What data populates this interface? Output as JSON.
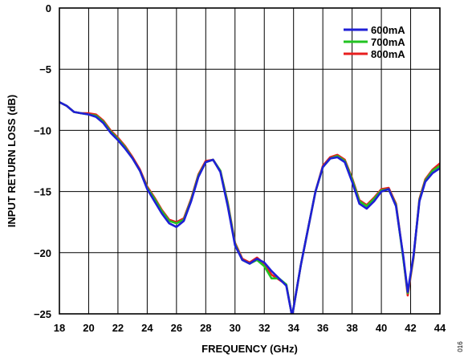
{
  "chart_data": {
    "type": "line",
    "title": "",
    "xlabel": "FREQUENCY (GHz)",
    "ylabel": "INPUT RETURN LOSS (dB)",
    "xlim": [
      18,
      44
    ],
    "ylim": [
      -25,
      0
    ],
    "xticks": [
      "18",
      "20",
      "22",
      "24",
      "26",
      "28",
      "30",
      "32",
      "34",
      "36",
      "38",
      "40",
      "42",
      "44"
    ],
    "yticks": [
      "0",
      "−5",
      "−10",
      "−15",
      "−20",
      "−25"
    ],
    "grid": true,
    "legend_position": "top-right",
    "figure_id": "016",
    "series": [
      {
        "name": "600mA",
        "color": "#1f1fd6",
        "x": [
          18,
          18.5,
          19,
          19.5,
          20,
          20.5,
          21,
          21.5,
          22,
          22.5,
          23,
          23.5,
          24,
          24.5,
          25,
          25.5,
          26,
          26.5,
          27,
          27.5,
          28,
          28.5,
          29,
          29.5,
          30,
          30.5,
          31,
          31.5,
          32,
          32.5,
          33,
          33.5,
          33.9,
          34.5,
          35,
          35.5,
          36,
          36.5,
          37,
          37.5,
          38,
          38.5,
          39,
          39.5,
          40,
          40.5,
          41,
          41.5,
          41.8,
          42.2,
          42.6,
          43,
          43.5,
          44
        ],
        "y": [
          -7.7,
          -8.0,
          -8.5,
          -8.6,
          -8.7,
          -8.9,
          -9.4,
          -10.2,
          -10.8,
          -11.5,
          -12.3,
          -13.3,
          -14.8,
          -15.8,
          -16.8,
          -17.6,
          -17.9,
          -17.4,
          -15.8,
          -13.8,
          -12.6,
          -12.4,
          -13.4,
          -16.2,
          -19.4,
          -20.6,
          -20.9,
          -20.5,
          -20.8,
          -21.5,
          -22.1,
          -22.7,
          -25.2,
          -21.0,
          -18.0,
          -15.0,
          -13.0,
          -12.3,
          -12.2,
          -12.6,
          -14.2,
          -16.0,
          -16.4,
          -15.8,
          -15.0,
          -14.8,
          -16.2,
          -20.3,
          -23.2,
          -20.2,
          -15.8,
          -14.2,
          -13.5,
          -13.1
        ]
      },
      {
        "name": "700mA",
        "color": "#22c322",
        "x": [
          18,
          18.5,
          19,
          19.5,
          20,
          20.5,
          21,
          21.5,
          22,
          22.5,
          23,
          23.5,
          24,
          24.5,
          25,
          25.5,
          26,
          26.5,
          27,
          27.5,
          28,
          28.5,
          29,
          29.5,
          30,
          30.5,
          31,
          31.5,
          32,
          32.5,
          33,
          33.5,
          33.9,
          34.5,
          35,
          35.5,
          36,
          36.5,
          37,
          37.5,
          38,
          38.5,
          39,
          39.5,
          40,
          40.5,
          41,
          41.5,
          41.8,
          42.2,
          42.6,
          43,
          43.5,
          44
        ],
        "y": [
          -7.7,
          -8.0,
          -8.5,
          -8.6,
          -8.7,
          -8.8,
          -9.3,
          -10.1,
          -10.7,
          -11.4,
          -12.3,
          -13.3,
          -14.7,
          -15.6,
          -16.6,
          -17.4,
          -17.6,
          -17.3,
          -15.7,
          -13.7,
          -12.6,
          -12.4,
          -13.3,
          -16.0,
          -19.3,
          -20.6,
          -20.9,
          -20.6,
          -21.1,
          -22.1,
          -22.1,
          -22.6,
          -25.2,
          -21.0,
          -18.0,
          -15.0,
          -13.0,
          -12.3,
          -12.1,
          -12.5,
          -14.0,
          -15.8,
          -16.2,
          -15.6,
          -14.9,
          -14.8,
          -16.1,
          -20.5,
          -23.3,
          -20.3,
          -15.7,
          -14.1,
          -13.3,
          -12.9
        ]
      },
      {
        "name": "800mA",
        "color": "#e81e1e",
        "x": [
          18,
          18.5,
          19,
          19.5,
          20,
          20.5,
          21,
          21.5,
          22,
          22.5,
          23,
          23.5,
          24,
          24.5,
          25,
          25.5,
          26,
          26.5,
          27,
          27.5,
          28,
          28.5,
          29,
          29.5,
          30,
          30.5,
          31,
          31.5,
          32,
          32.5,
          33,
          33.5,
          33.9,
          34.5,
          35,
          35.5,
          36,
          36.5,
          37,
          37.5,
          38,
          38.5,
          39,
          39.5,
          40,
          40.5,
          41,
          41.5,
          41.8,
          42.2,
          42.6,
          43,
          43.5,
          44
        ],
        "y": [
          -7.7,
          -8.0,
          -8.5,
          -8.6,
          -8.6,
          -8.7,
          -9.2,
          -10.0,
          -10.6,
          -11.3,
          -12.2,
          -13.2,
          -14.6,
          -15.5,
          -16.5,
          -17.3,
          -17.5,
          -17.2,
          -15.6,
          -13.6,
          -12.5,
          -12.4,
          -13.3,
          -15.9,
          -19.2,
          -20.5,
          -20.8,
          -20.4,
          -20.9,
          -21.8,
          -22.2,
          -22.6,
          -25.2,
          -21.0,
          -18.0,
          -15.0,
          -12.9,
          -12.2,
          -12.0,
          -12.4,
          -13.9,
          -15.7,
          -16.1,
          -15.5,
          -14.8,
          -14.7,
          -16.0,
          -20.4,
          -23.5,
          -20.4,
          -15.6,
          -14.0,
          -13.2,
          -12.7
        ]
      }
    ]
  }
}
